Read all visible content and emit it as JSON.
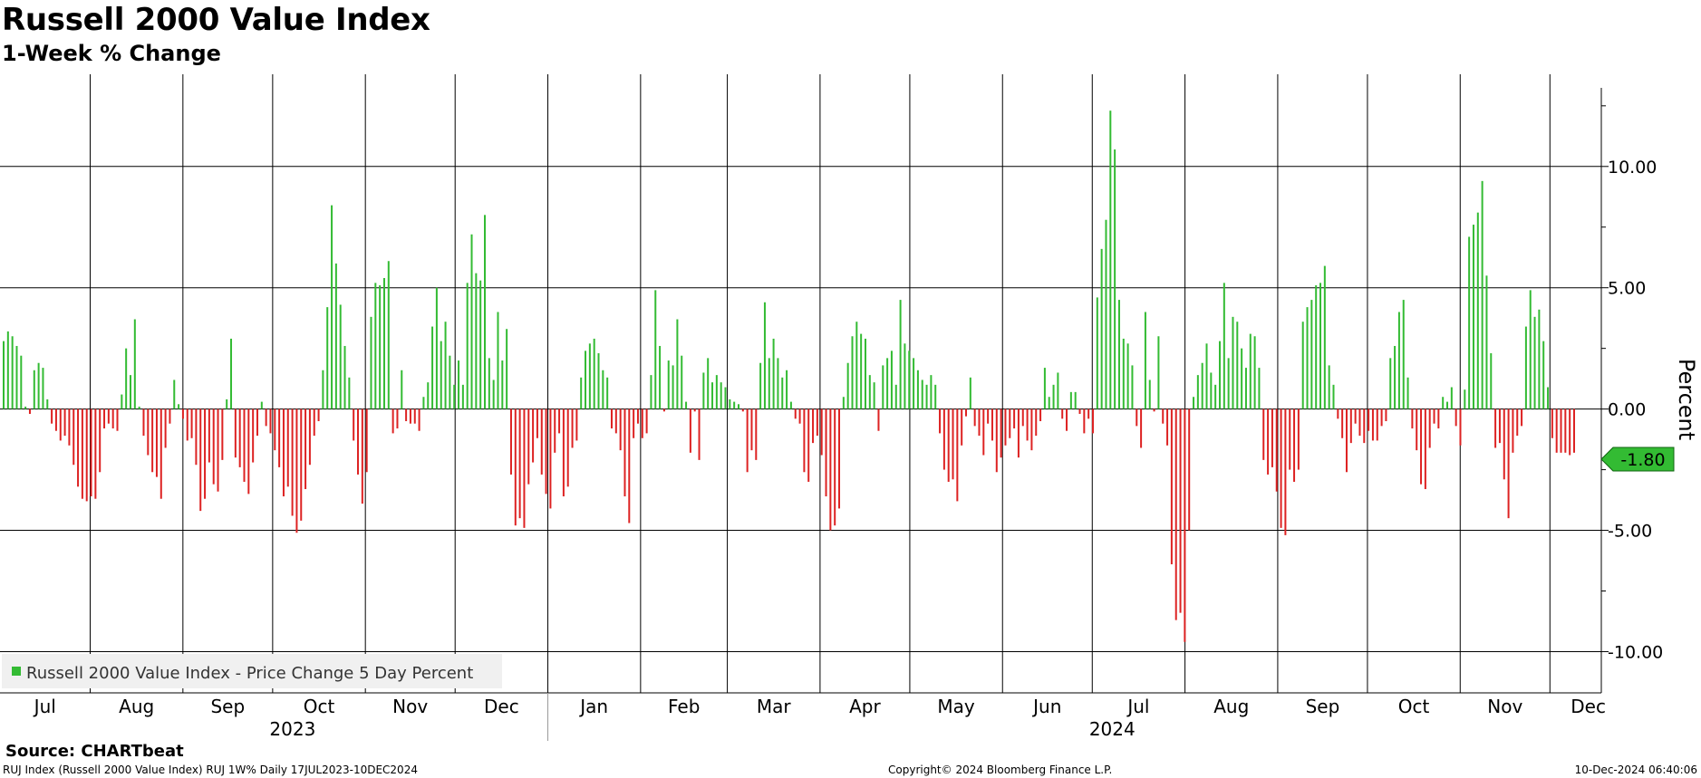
{
  "title": "Russell 2000 Value Index",
  "subtitle": "1-Week % Change",
  "source": "Source: CHARTbeat",
  "footer": {
    "left": "RUJ Index (Russell 2000 Value Index) RUJ 1W% Daily 17JUL2023-10DEC2024",
    "center": "Copyright© 2024 Bloomberg Finance L.P.",
    "right": "10-Dec-2024 06:40:06"
  },
  "colors": {
    "positive": "#33bb33",
    "negative": "#dd2222",
    "last_value_tag": "#33bb33"
  },
  "chart_data": {
    "type": "bar",
    "title": "Russell 2000 Value Index",
    "subtitle": "1-Week % Change",
    "ylabel": "Percent",
    "ylim": [
      -11.7,
      13.8
    ],
    "y_ticks": [
      "10.00",
      "5.00",
      "0.00",
      "-5.00",
      "-10.00"
    ],
    "y_tick_values": [
      10,
      5,
      0,
      -5,
      -10
    ],
    "grid": true,
    "legend": {
      "position": "bottom-left",
      "entries": [
        "Russell 2000 Value Index - Price Change 5 Day Percent"
      ]
    },
    "last_value": -1.8,
    "last_value_label": "-1.80",
    "x_range": [
      "2023-07-17",
      "2024-12-10"
    ],
    "month_ticks": [
      {
        "label": "Jul",
        "date": "2023-07-01"
      },
      {
        "label": "Aug",
        "date": "2023-08-01"
      },
      {
        "label": "Sep",
        "date": "2023-09-01"
      },
      {
        "label": "Oct",
        "date": "2023-10-01"
      },
      {
        "label": "Nov",
        "date": "2023-11-01"
      },
      {
        "label": "Dec",
        "date": "2023-12-01"
      },
      {
        "label": "Jan",
        "date": "2024-01-01"
      },
      {
        "label": "Feb",
        "date": "2024-02-01"
      },
      {
        "label": "Mar",
        "date": "2024-03-01"
      },
      {
        "label": "Apr",
        "date": "2024-04-01"
      },
      {
        "label": "May",
        "date": "2024-05-01"
      },
      {
        "label": "Jun",
        "date": "2024-06-01"
      },
      {
        "label": "Jul",
        "date": "2024-07-01"
      },
      {
        "label": "Aug",
        "date": "2024-08-01"
      },
      {
        "label": "Sep",
        "date": "2024-09-01"
      },
      {
        "label": "Oct",
        "date": "2024-10-01"
      },
      {
        "label": "Nov",
        "date": "2024-11-01"
      },
      {
        "label": "Dec",
        "date": "2024-12-01"
      }
    ],
    "year_labels": [
      {
        "label": "2023",
        "date": "2023-10-01"
      },
      {
        "label": "2024",
        "date": "2024-07-01"
      }
    ],
    "values": [
      2.8,
      3.2,
      3.0,
      2.6,
      2.2,
      0.1,
      -0.2,
      1.6,
      1.9,
      1.7,
      0.4,
      -0.6,
      -0.9,
      -1.3,
      -1.1,
      -1.5,
      -2.3,
      -3.2,
      -3.7,
      -3.8,
      -3.6,
      -3.7,
      -2.6,
      -0.8,
      -0.6,
      -0.8,
      -0.9,
      0.6,
      2.5,
      1.4,
      3.7,
      0.1,
      -1.1,
      -1.9,
      -2.6,
      -2.8,
      -3.7,
      -1.6,
      -0.6,
      1.2,
      0.2,
      -0.4,
      -1.3,
      -1.2,
      -2.3,
      -4.2,
      -3.7,
      -2.2,
      -3.1,
      -3.4,
      -2.1,
      0.4,
      2.9,
      -2.0,
      -2.4,
      -3.0,
      -3.5,
      -2.2,
      -1.1,
      0.3,
      -0.7,
      -1.0,
      -1.7,
      -2.4,
      -3.6,
      -3.2,
      -4.4,
      -5.1,
      -4.6,
      -3.3,
      -2.3,
      -1.1,
      -0.5,
      1.6,
      4.2,
      8.4,
      6.0,
      4.3,
      2.6,
      1.3,
      -1.3,
      -2.7,
      -3.9,
      -2.6,
      3.8,
      5.2,
      5.1,
      5.4,
      6.1,
      -1.0,
      -0.8,
      1.6,
      -0.5,
      -0.6,
      -0.6,
      -0.9,
      0.5,
      1.1,
      3.4,
      5.0,
      2.8,
      3.6,
      2.2,
      1.0,
      2.0,
      1.0,
      5.2,
      7.2,
      5.6,
      5.3,
      8.0,
      2.1,
      1.2,
      4.0,
      2.0,
      3.3,
      -2.7,
      -4.8,
      -4.5,
      -4.9,
      -3.1,
      -2.2,
      -1.2,
      -2.7,
      -3.5,
      -4.1,
      -1.8,
      -1.0,
      -3.6,
      -3.2,
      -1.6,
      -1.3,
      1.3,
      2.4,
      2.7,
      2.9,
      2.3,
      1.6,
      1.3,
      -0.8,
      -1.0,
      -1.7,
      -3.6,
      -4.7,
      -1.2,
      -0.6,
      -1.2,
      -1.0,
      1.4,
      4.9,
      2.6,
      -0.1,
      2.0,
      1.8,
      3.7,
      2.2,
      0.3,
      -1.8,
      -0.1,
      -2.1,
      1.5,
      2.1,
      1.1,
      1.4,
      1.1,
      0.9,
      0.4,
      0.3,
      0.2,
      -0.1,
      -2.6,
      -1.7,
      -2.1,
      1.9,
      4.4,
      2.1,
      2.9,
      2.1,
      1.3,
      1.6,
      0.3,
      -0.4,
      -0.6,
      -2.6,
      -3.0,
      -1.4,
      -1.1,
      -1.9,
      -3.6,
      -5.0,
      -4.8,
      -4.1,
      0.5,
      1.9,
      3.0,
      3.6,
      3.1,
      2.9,
      1.4,
      1.1,
      -0.9,
      1.8,
      2.1,
      2.4,
      1.0,
      4.5,
      2.7,
      2.4,
      2.1,
      1.6,
      1.2,
      1.0,
      1.4,
      1.0,
      -1.0,
      -2.5,
      -3.0,
      -2.9,
      -3.8,
      -1.5,
      -0.3,
      1.3,
      -0.7,
      -1.1,
      -1.9,
      -0.6,
      -1.3,
      -2.6,
      -2.0,
      -1.5,
      -1.2,
      -0.8,
      -2.0,
      -0.7,
      -1.3,
      -1.7,
      -1.1,
      -0.5,
      1.7,
      0.5,
      1.0,
      1.5,
      -0.4,
      -0.9,
      0.7,
      0.7,
      -0.2,
      -1.0,
      -0.4,
      -1.0,
      4.6,
      6.6,
      7.8,
      12.3,
      10.7,
      4.5,
      2.9,
      2.7,
      1.8,
      -0.7,
      -1.6,
      4.0,
      1.2,
      -0.1,
      3.0,
      -0.6,
      -1.5,
      -6.4,
      -8.7,
      -8.4,
      -9.6,
      -5.0,
      0.5,
      1.4,
      1.9,
      2.7,
      1.5,
      1.0,
      2.8,
      5.2,
      2.1,
      3.8,
      3.6,
      2.5,
      1.7,
      3.1,
      3.0,
      1.7,
      -2.1,
      -2.7,
      -2.4,
      -3.4,
      -4.9,
      -5.2,
      -2.5,
      -3.0,
      -2.5,
      3.6,
      4.2,
      4.5,
      5.1,
      5.2,
      5.9,
      1.8,
      1.0,
      -0.4,
      -1.2,
      -2.6,
      -1.4,
      -0.6,
      -1.1,
      -1.4,
      -0.9,
      -1.3,
      -1.3,
      -0.7,
      -0.5,
      2.1,
      2.6,
      4.0,
      4.5,
      1.3,
      -0.8,
      -1.7,
      -3.1,
      -3.3,
      -1.6,
      -0.6,
      -0.8,
      0.5,
      0.3,
      0.9,
      -0.7,
      -1.5,
      0.8,
      7.1,
      7.6,
      8.1,
      9.4,
      5.5,
      2.3,
      -1.6,
      -1.4,
      -2.9,
      -4.5,
      -1.8,
      -1.1,
      -0.7,
      3.4,
      4.9,
      3.8,
      4.1,
      2.8,
      0.9,
      -1.2,
      -1.8,
      -1.8,
      -1.8,
      -1.9,
      -1.8
    ]
  }
}
